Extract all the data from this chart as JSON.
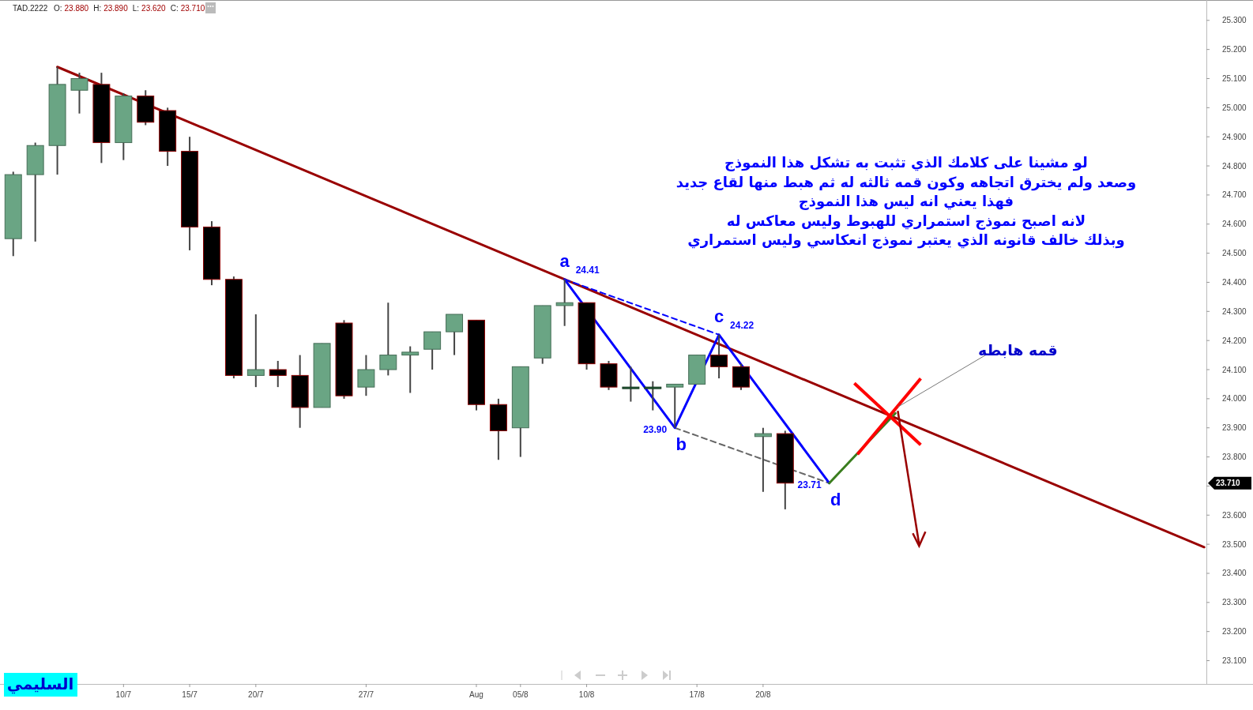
{
  "chart_data": {
    "type": "candlestick",
    "title": "TAD.2222",
    "subtitle": "O: 23.880 H: 23.890 L: 23.620 C: 23.710",
    "categories": [
      null,
      null,
      null,
      null,
      null,
      "10/7",
      null,
      null,
      "15/7",
      null,
      null,
      "20/7",
      null,
      null,
      null,
      null,
      "27/7",
      null,
      null,
      null,
      null,
      "Aug",
      null,
      "05/8",
      null,
      null,
      "10/8",
      null,
      null,
      null,
      null,
      "17/8",
      null,
      null,
      "20/8",
      null,
      null,
      null,
      null,
      null,
      null,
      null,
      null,
      null,
      null,
      null,
      null,
      null,
      null,
      null,
      null,
      null,
      null,
      null,
      null
    ],
    "ohlc": [
      [
        24.55,
        24.78,
        24.49,
        24.77
      ],
      [
        24.77,
        24.88,
        24.54,
        24.87
      ],
      [
        24.87,
        25.14,
        24.77,
        25.08
      ],
      [
        25.06,
        25.12,
        24.98,
        25.1
      ],
      [
        25.08,
        25.12,
        24.81,
        24.88
      ],
      [
        24.88,
        25.05,
        24.82,
        25.04
      ],
      [
        25.04,
        25.06,
        24.94,
        24.95
      ],
      [
        24.99,
        25.0,
        24.8,
        24.85
      ],
      [
        24.85,
        24.9,
        24.51,
        24.59
      ],
      [
        24.59,
        24.61,
        24.39,
        24.41
      ],
      [
        24.41,
        24.42,
        24.07,
        24.08
      ],
      [
        24.08,
        24.29,
        24.04,
        24.1
      ],
      [
        24.1,
        24.13,
        24.04,
        24.08
      ],
      [
        24.08,
        24.15,
        23.9,
        23.97
      ],
      [
        23.97,
        24.19,
        23.97,
        24.19
      ],
      [
        24.26,
        24.27,
        24.0,
        24.01
      ],
      [
        24.04,
        24.15,
        24.01,
        24.1
      ],
      [
        24.1,
        24.33,
        24.08,
        24.15
      ],
      [
        24.15,
        24.18,
        24.02,
        24.16
      ],
      [
        24.17,
        24.23,
        24.1,
        24.23
      ],
      [
        24.23,
        24.29,
        24.15,
        24.29
      ],
      [
        24.27,
        24.27,
        23.96,
        23.98
      ],
      [
        23.98,
        24.0,
        23.79,
        23.89
      ],
      [
        23.9,
        24.11,
        23.8,
        24.11
      ],
      [
        24.14,
        24.32,
        24.12,
        24.32
      ],
      [
        24.32,
        24.41,
        24.25,
        24.33
      ],
      [
        24.33,
        24.33,
        24.1,
        24.12
      ],
      [
        24.12,
        24.13,
        24.03,
        24.04
      ],
      [
        24.04,
        24.11,
        23.99,
        24.04
      ],
      [
        24.04,
        24.06,
        23.96,
        24.04
      ],
      [
        24.04,
        24.05,
        23.9,
        24.05
      ],
      [
        24.05,
        24.15,
        24.05,
        24.15
      ],
      [
        24.15,
        24.22,
        24.07,
        24.11
      ],
      [
        24.11,
        24.12,
        24.03,
        24.04
      ],
      [
        23.87,
        23.9,
        23.68,
        23.88
      ],
      [
        23.88,
        23.89,
        23.62,
        23.71
      ],
      null,
      null,
      null,
      null,
      null,
      null,
      null,
      null,
      null,
      null,
      null,
      null,
      null,
      null,
      null,
      null,
      null,
      null,
      null
    ],
    "colors": [
      "#6aa584",
      "#6aa584",
      "#6aa584",
      "#6aa584",
      "#000000",
      "#6aa584",
      "#000000",
      "#000000",
      "#000000",
      "#000000",
      "#000000",
      "#6aa584",
      "#000000",
      "#000000",
      "#6aa584",
      "#000000",
      "#6aa584",
      "#6aa584",
      "#6aa584",
      "#6aa584",
      "#6aa584",
      "#000000",
      "#000000",
      "#6aa584",
      "#6aa584",
      "#6aa584",
      "#000000",
      "#000000",
      "#1e5631",
      "#1e5631",
      "#6aa584",
      "#6aa584",
      "#000000",
      "#000000",
      "#6aa584",
      "#000000",
      null,
      null,
      null,
      null,
      null,
      null,
      null,
      null,
      null,
      null,
      null,
      null,
      null,
      null,
      null,
      null,
      null,
      null,
      null
    ],
    "ylim": [
      23.02,
      25.37
    ],
    "yticks": [
      {
        "value": 23.1,
        "label": "23.100"
      },
      {
        "value": 23.2,
        "label": "23.200"
      },
      {
        "value": 23.3,
        "label": "23.300"
      },
      {
        "value": 23.4,
        "label": "23.400"
      },
      {
        "value": 23.5,
        "label": "23.500"
      },
      {
        "value": 23.6,
        "label": "23.600"
      },
      {
        "value": 23.7,
        "label": null
      },
      {
        "value": 23.8,
        "label": "23.800"
      },
      {
        "value": 23.9,
        "label": "23.900"
      },
      {
        "value": 24.0,
        "label": "24.000"
      },
      {
        "value": 24.1,
        "label": "24.100"
      },
      {
        "value": 24.2,
        "label": "24.200"
      },
      {
        "value": 24.3,
        "label": "24.300"
      },
      {
        "value": 24.4,
        "label": "24.400"
      },
      {
        "value": 24.5,
        "label": "24.500"
      },
      {
        "value": 24.6,
        "label": "24.600"
      },
      {
        "value": 24.7,
        "label": "24.700"
      },
      {
        "value": 24.8,
        "label": "24.800"
      },
      {
        "value": 24.9,
        "label": "24.900"
      },
      {
        "value": 25.0,
        "label": "25.000"
      },
      {
        "value": 25.1,
        "label": "25.100"
      },
      {
        "value": 25.2,
        "label": "25.200"
      },
      {
        "value": 25.3,
        "label": "25.300"
      }
    ],
    "series": [
      {
        "type": "line",
        "color": "#990000",
        "line_style": "solid",
        "values": [
          null,
          null,
          25.14,
          null,
          null,
          null,
          null,
          null,
          null,
          null,
          null,
          null,
          null,
          null,
          null,
          null,
          null,
          null,
          null,
          null,
          null,
          null,
          null,
          null,
          null,
          null,
          null,
          null,
          null,
          null,
          null,
          null,
          null,
          null,
          null,
          null,
          null,
          null,
          null,
          null,
          null,
          null,
          null,
          null,
          null,
          null,
          null,
          null,
          null,
          null,
          null,
          null,
          null,
          null,
          23.49
        ]
      },
      {
        "type": "line",
        "color": "#0000ff",
        "line_style": "dashed",
        "values": [
          null,
          null,
          null,
          null,
          null,
          null,
          null,
          null,
          null,
          null,
          null,
          null,
          null,
          null,
          null,
          null,
          null,
          null,
          null,
          null,
          null,
          null,
          null,
          null,
          null,
          24.41,
          null,
          null,
          null,
          null,
          null,
          null,
          24.22,
          null,
          null,
          null,
          null,
          null,
          null,
          null,
          null,
          null,
          null,
          null,
          null,
          null,
          null,
          null,
          null,
          null,
          null,
          null,
          null,
          null,
          null
        ]
      },
      {
        "type": "line",
        "color": "#666666",
        "line_style": "dashed",
        "values": [
          null,
          null,
          null,
          null,
          null,
          null,
          null,
          null,
          null,
          null,
          null,
          null,
          null,
          null,
          null,
          null,
          null,
          null,
          null,
          null,
          null,
          null,
          null,
          null,
          null,
          null,
          null,
          null,
          null,
          null,
          23.9,
          null,
          null,
          null,
          null,
          null,
          null,
          23.71,
          null,
          null,
          null,
          null,
          null,
          null,
          null,
          null,
          null,
          null,
          null,
          null,
          null,
          null,
          null,
          null,
          null
        ]
      },
      {
        "type": "line",
        "color": "#0000ff",
        "line_style": "solid",
        "values": [
          null,
          null,
          null,
          null,
          null,
          null,
          null,
          null,
          null,
          null,
          null,
          null,
          null,
          null,
          null,
          null,
          null,
          null,
          null,
          null,
          null,
          null,
          null,
          null,
          null,
          24.41,
          null,
          null,
          null,
          null,
          23.9,
          null,
          24.22,
          null,
          null,
          null,
          null,
          23.71,
          null,
          null,
          null,
          null,
          null,
          null,
          null,
          null,
          null,
          null,
          null,
          null,
          null,
          null,
          null,
          null,
          null
        ],
        "value_labels": [
          null,
          null,
          null,
          null,
          null,
          null,
          null,
          null,
          null,
          null,
          null,
          null,
          null,
          null,
          null,
          null,
          null,
          null,
          null,
          null,
          null,
          null,
          null,
          null,
          null,
          "24.41",
          null,
          null,
          null,
          null,
          "23.90",
          null,
          "24.22",
          null,
          null,
          null,
          null,
          "23.71",
          null,
          null,
          null,
          null,
          null,
          null,
          null,
          null,
          null,
          null,
          null,
          null,
          null,
          null,
          null,
          null,
          null
        ]
      },
      {
        "type": "line",
        "color": "#3a7d1e",
        "line_style": "solid",
        "values": [
          null,
          null,
          null,
          null,
          null,
          null,
          null,
          null,
          null,
          null,
          null,
          null,
          null,
          null,
          null,
          null,
          null,
          null,
          null,
          null,
          null,
          null,
          null,
          null,
          null,
          null,
          null,
          null,
          null,
          null,
          null,
          null,
          null,
          null,
          null,
          null,
          null,
          23.71,
          null,
          null,
          23.95,
          null,
          null,
          null,
          null,
          null,
          null,
          null,
          null,
          null,
          null,
          null,
          null,
          null,
          null
        ]
      }
    ],
    "annotations": [
      "لو مشينا على كلامك الذي تثبت به تشكل هذا النموذج\nوصعد ولم يخترق اتجاهه وكون قمه ثالثه له ثم هبط منها لقاع جديد\nفهذا يعني انه ليس هذا النموذج\nلانه اصبح نموذج استمراري للهبوط وليس معاكس له\nوبذلك خالف قانونه الذي يعتبر نموذج انعكاسي وليس استمراري",
      "a",
      "b",
      "c",
      "d",
      "قمه هابطه",
      "23.710",
      "السليمي"
    ]
  }
}
